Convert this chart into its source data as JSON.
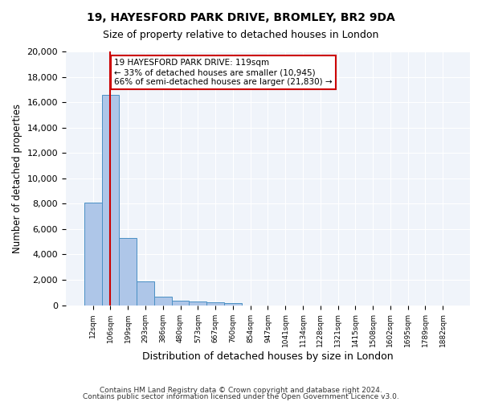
{
  "title": "19, HAYESFORD PARK DRIVE, BROMLEY, BR2 9DA",
  "subtitle": "Size of property relative to detached houses in London",
  "xlabel": "Distribution of detached houses by size in London",
  "ylabel": "Number of detached properties",
  "bar_color": "#aec6e8",
  "bar_edge_color": "#4a90c4",
  "vline_color": "#cc0000",
  "vline_x": 1,
  "annotation_text": "19 HAYESFORD PARK DRIVE: 119sqm\n← 33% of detached houses are smaller (10,945)\n66% of semi-detached houses are larger (21,830) →",
  "annotation_box_color": "#cc0000",
  "categories": [
    "12sqm",
    "106sqm",
    "199sqm",
    "293sqm",
    "386sqm",
    "480sqm",
    "573sqm",
    "667sqm",
    "760sqm",
    "854sqm",
    "947sqm",
    "1041sqm",
    "1134sqm",
    "1228sqm",
    "1321sqm",
    "1415sqm",
    "1508sqm",
    "1602sqm",
    "1695sqm",
    "1789sqm",
    "1882sqm"
  ],
  "values": [
    8100,
    16600,
    5300,
    1850,
    680,
    340,
    260,
    210,
    185,
    0,
    0,
    0,
    0,
    0,
    0,
    0,
    0,
    0,
    0,
    0,
    0
  ],
  "ylim": [
    0,
    20000
  ],
  "yticks": [
    0,
    2000,
    4000,
    6000,
    8000,
    10000,
    12000,
    14000,
    16000,
    18000,
    20000
  ],
  "background_color": "#f0f4fa",
  "grid_color": "#ffffff",
  "footer_line1": "Contains HM Land Registry data © Crown copyright and database right 2024.",
  "footer_line2": "Contains public sector information licensed under the Open Government Licence v3.0."
}
